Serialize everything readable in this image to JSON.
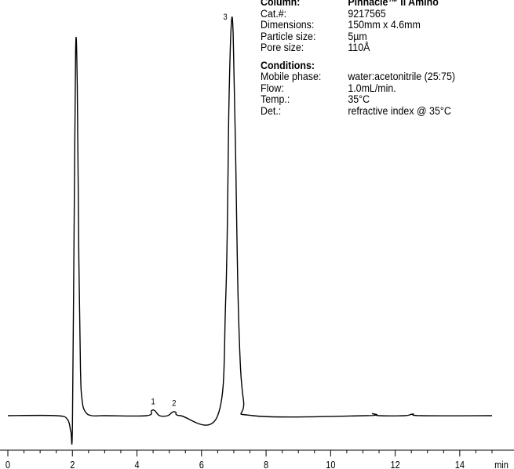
{
  "info": {
    "column_label": "Column:",
    "column_value": "Pinnacle™ II Amino",
    "rows": [
      {
        "key": "Cat.#:",
        "value": "9217565"
      },
      {
        "key": "Dimensions:",
        "value": "150mm x 4.6mm"
      },
      {
        "key": "Particle size:",
        "value": "5µm"
      },
      {
        "key": "Pore size:",
        "value": "110Å"
      }
    ],
    "conditions_label": "Conditions:",
    "conditions": [
      {
        "key": "Mobile phase:",
        "value": "water:acetonitrile (25:75)"
      },
      {
        "key": "Flow:",
        "value": "1.0mL/min."
      },
      {
        "key": "Temp.:",
        "value": "35°C"
      },
      {
        "key": "Det.:",
        "value": "refractive index @ 35°C"
      }
    ]
  },
  "chart_data": {
    "type": "line",
    "title": "",
    "xlabel": "min",
    "ylabel": "",
    "xlim": [
      0,
      15
    ],
    "ylim": [
      -0.06,
      1.0
    ],
    "x_ticks": [
      0,
      2,
      4,
      6,
      8,
      10,
      12,
      14
    ],
    "x_tick_labels": [
      "0",
      "2",
      "4",
      "6",
      "8",
      "10",
      "12",
      "14"
    ],
    "x_minor_step": 0.5,
    "grid": false,
    "series": [
      {
        "x": [
          0.0,
          1.5,
          1.85,
          1.95,
          2.0,
          2.05,
          2.1,
          2.15,
          2.2,
          2.25,
          2.3,
          2.4,
          2.6,
          3.0,
          4.3,
          4.45,
          4.55,
          4.7,
          4.95,
          5.1,
          5.2,
          5.35,
          6.5,
          6.75,
          6.85,
          6.92,
          6.98,
          7.05,
          7.15,
          7.3,
          7.6,
          11.1,
          11.3,
          11.5,
          12.3,
          12.55,
          12.8,
          15.0
        ],
        "y": [
          0.0,
          0.0,
          -0.01,
          -0.04,
          -0.03,
          0.45,
          0.94,
          0.85,
          0.4,
          0.12,
          0.04,
          0.01,
          0.0,
          0.0,
          0.0,
          0.013,
          0.013,
          0.0,
          0.0,
          0.009,
          0.009,
          0.0,
          0.0,
          0.3,
          0.8,
          1.0,
          0.98,
          0.7,
          0.25,
          0.04,
          0.0,
          0.0,
          0.005,
          0.0,
          0.0,
          0.004,
          0.0,
          0.0
        ]
      }
    ],
    "peak_labels": [
      {
        "text": "1",
        "x": 4.5,
        "y": 0.013
      },
      {
        "text": "2",
        "x": 5.15,
        "y": 0.009
      },
      {
        "text": "3",
        "x": 6.93,
        "y": 1.0
      }
    ],
    "line_color": "#000000"
  }
}
